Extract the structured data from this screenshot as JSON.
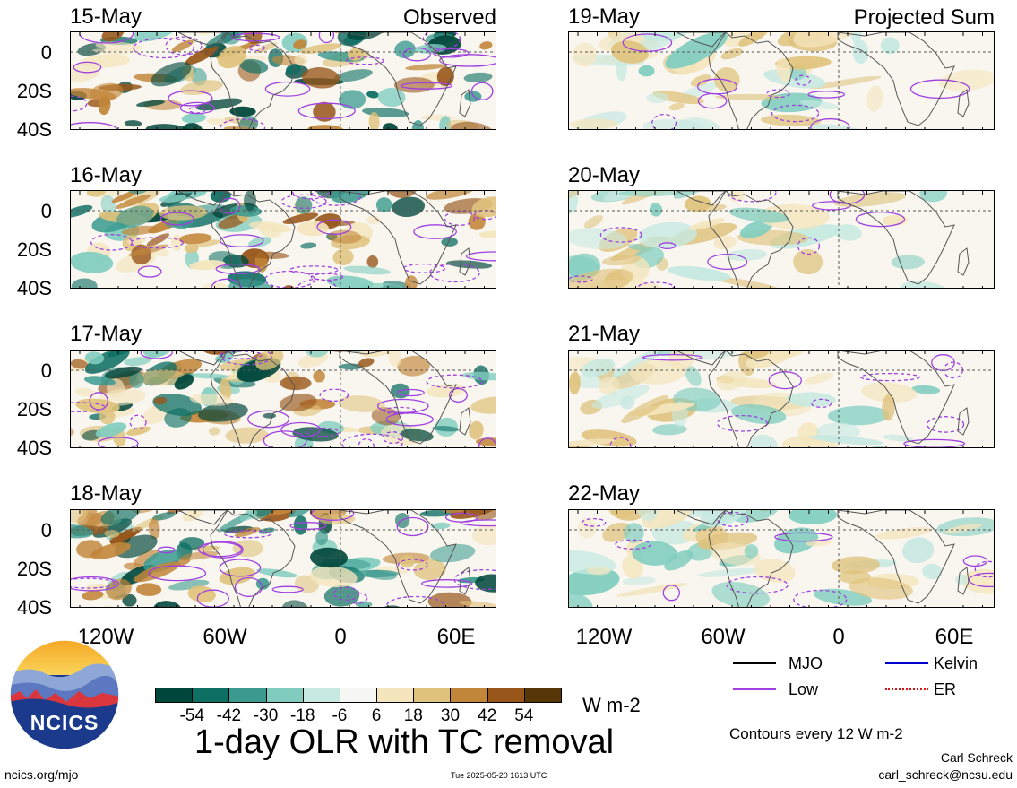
{
  "columns": [
    {
      "header": "Observed",
      "panels": [
        "15-May",
        "16-May",
        "17-May",
        "18-May"
      ]
    },
    {
      "header": "Projected Sum",
      "panels": [
        "19-May",
        "20-May",
        "21-May",
        "22-May"
      ]
    }
  ],
  "lat_ticks": [
    "0",
    "20S",
    "40S"
  ],
  "lon_ticks": [
    "120W",
    "60W",
    "0",
    "60E"
  ],
  "colorbar": {
    "colors": [
      "#01463b",
      "#0e6f64",
      "#3b9a8f",
      "#80cdbf",
      "#c6e9e1",
      "#f6f6f4",
      "#f4e5bd",
      "#dfc27c",
      "#c2863a",
      "#98561a",
      "#573607"
    ],
    "ticks": [
      "-54",
      "-42",
      "-30",
      "-18",
      "-6",
      "6",
      "18",
      "30",
      "42",
      "54"
    ],
    "units": "W m-2"
  },
  "legend": [
    {
      "label": "MJO",
      "color": "#000000",
      "style": "solid"
    },
    {
      "label": "Kelvin",
      "color": "#0000cc",
      "style": "solid"
    },
    {
      "label": "Low",
      "color": "#a040e0",
      "style": "solid"
    },
    {
      "label": "ER",
      "color": "#dd1111",
      "style": "dotted"
    }
  ],
  "title": "1-day OLR with TC removal",
  "contours_note": "Contours every 12 W m-2",
  "author": "Carl Schreck",
  "email": "carl_schreck@ncsu.edu",
  "website": "ncics.org/mjo",
  "timestamp": "Tue 2025-05-20 1613 UTC",
  "logo_text": "NCICS"
}
